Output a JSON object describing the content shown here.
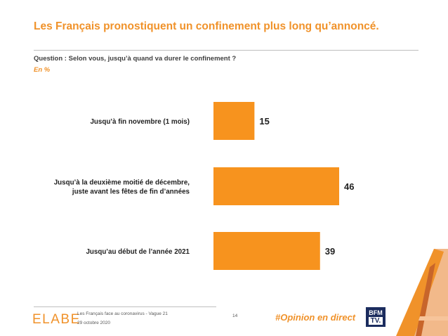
{
  "header": {
    "title": "Les Français pronostiquent un confinement plus long qu’annoncé.",
    "question": "Question : Selon vous, jusqu’à quand va durer le confinement ?",
    "unit": "En %"
  },
  "chart_data": {
    "type": "bar",
    "orientation": "horizontal",
    "categories": [
      [
        "Jusqu’à fin novembre (1 mois)"
      ],
      [
        "Jusqu’à la deuxième moitié de décembre,",
        "juste avant les fêtes de fin d’années"
      ],
      [
        "Jusqu’au début de l’année 2021"
      ]
    ],
    "values": [
      15,
      46,
      39
    ],
    "title": "",
    "xlabel": "",
    "ylabel": "",
    "xlim": [
      0,
      46
    ],
    "grid": false,
    "legend": "none",
    "bar_color": "#f7931e"
  },
  "footer": {
    "logo": "ELABE",
    "study": "Les Français face au coronavirus - Vague 21",
    "date": "29 octobre 2020",
    "page": "14",
    "hashtag": "#Opinion en direct",
    "bfm_top": "BFM",
    "bfm_bottom": "TV."
  },
  "colors": {
    "accent": "#f0922a",
    "bar": "#f7931e",
    "text": "#1f1f1f",
    "bfm_blue": "#1b2c5e"
  }
}
